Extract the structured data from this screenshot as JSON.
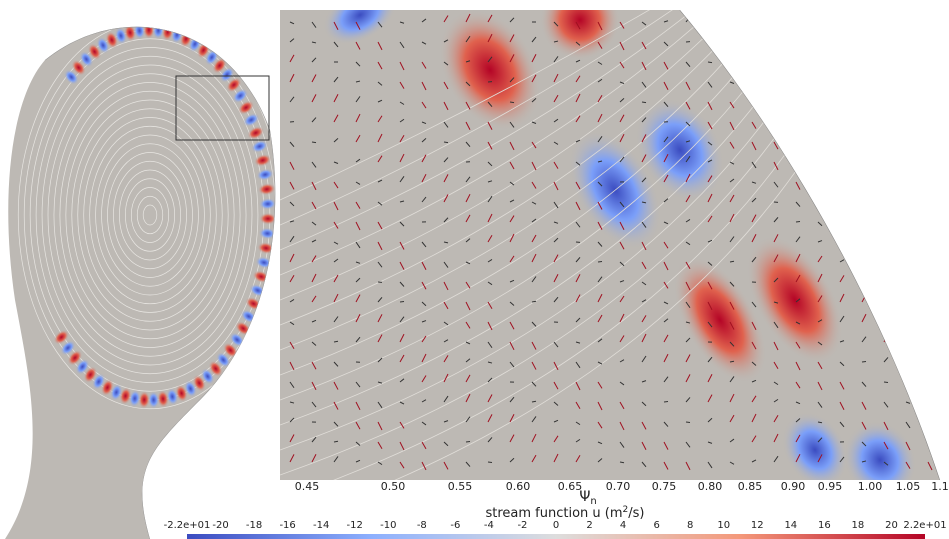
{
  "plot": {
    "x_axis": {
      "label": "Ψ",
      "label_subscript": "n",
      "ticks": [
        "0.45",
        "0.50",
        "0.55",
        "0.60",
        "0.65",
        "0.70",
        "0.75",
        "0.80",
        "0.85",
        "0.90",
        "0.95",
        "1.00",
        "1.05",
        "1.1"
      ]
    },
    "colorbar": {
      "title": "stream function u (m",
      "title_superscript": "2",
      "title_end": "/s)",
      "ticks": [
        "-2.2e+01",
        "-20",
        "-18",
        "-16",
        "-14",
        "-12",
        "-10",
        "-8",
        "-6",
        "-4",
        "-2",
        "0",
        "2",
        "4",
        "6",
        "8",
        "10",
        "12",
        "14",
        "16",
        "18",
        "20",
        "2.2e+01"
      ]
    }
  }
}
